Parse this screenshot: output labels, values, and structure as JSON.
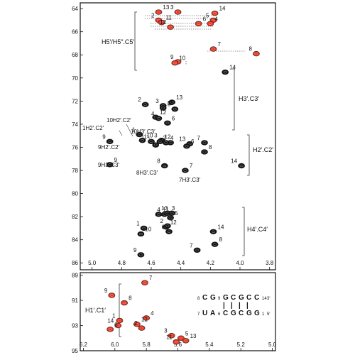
{
  "chart_data": [
    {
      "type": "scatter",
      "x_ticks": [
        "5.0",
        "4.8",
        "4.6",
        "4.4",
        "4.2",
        "4.0",
        "3.8"
      ],
      "y_ticks": [
        "64",
        "66",
        "68",
        "70",
        "72",
        "74",
        "76",
        "78",
        "80",
        "82",
        "84",
        "86"
      ],
      "xlim": [
        5.08,
        3.76
      ],
      "ylim": [
        63.5,
        86.6
      ],
      "group_labels": [
        {
          "text": "H5′/H5″.C5′"
        },
        {
          "text": "H3′.C3′"
        },
        {
          "text": "H2′.C2′"
        },
        {
          "text": "H4′.C4′"
        }
      ],
      "annotations": [
        {
          "text": "1H2′.C2′"
        },
        {
          "text": "10H2′.C2′"
        },
        {
          "text": "10H3′.C3′"
        },
        {
          "text": "9H2′.C2′"
        },
        {
          "text": "9H3′.C3′"
        },
        {
          "text": "8H3′.C3′"
        },
        {
          "text": "7H3′.C3′"
        }
      ],
      "series": [
        {
          "color": "#e8321e",
          "points": [
            {
              "label": "13",
              "x": 4.55,
              "y": 64.3
            },
            {
              "label": "3",
              "x": 4.42,
              "y": 64.3
            },
            {
              "label": "14",
              "x": 4.17,
              "y": 64.4
            },
            {
              "label": "2",
              "x": 4.55,
              "y": 65.0
            },
            {
              "label": "11",
              "x": 4.53,
              "y": 65.2
            },
            {
              "label": "5",
              "x": 4.18,
              "y": 65.0
            },
            {
              "label": "4",
              "x": 4.2,
              "y": 65.3
            },
            {
              "label": "12",
              "x": 4.47,
              "y": 65.6
            },
            {
              "label": "6",
              "x": 4.28,
              "y": 65.3
            },
            {
              "label": "9",
              "x": 4.42,
              "y": 68.6
            },
            {
              "label": "7",
              "x": 4.18,
              "y": 67.5
            },
            {
              "label": "8",
              "x": 3.89,
              "y": 67.9
            },
            {
              "label": "10",
              "x": 4.44,
              "y": 68.7
            }
          ]
        },
        {
          "color": "#111111",
          "points": [
            {
              "label": "14",
              "x": 4.1,
              "y": 69.5
            },
            {
              "label": "3",
              "x": 4.52,
              "y": 72.4
            },
            {
              "label": "13",
              "x": 4.46,
              "y": 72.1
            },
            {
              "label": "2",
              "x": 4.64,
              "y": 72.3
            },
            {
              "label": "11",
              "x": 4.52,
              "y": 72.6
            },
            {
              "label": "5",
              "x": 4.44,
              "y": 72.7
            },
            {
              "label": "12",
              "x": 4.57,
              "y": 73.4
            },
            {
              "label": "4",
              "x": 4.55,
              "y": 73.5
            },
            {
              "label": "6",
              "x": 4.49,
              "y": 73.9
            },
            {
              "label": "1",
              "x": 4.68,
              "y": 74.9
            },
            {
              "label": "10",
              "x": 4.66,
              "y": 75.4
            },
            {
              "label": "3",
              "x": 4.53,
              "y": 75.4
            },
            {
              "label": "12",
              "x": 4.54,
              "y": 75.5
            },
            {
              "label": "11",
              "x": 4.6,
              "y": 75.5
            },
            {
              "label": "5",
              "x": 4.57,
              "y": 75.8
            },
            {
              "label": "2",
              "x": 4.47,
              "y": 75.6
            },
            {
              "label": "4",
              "x": 4.5,
              "y": 75.6
            },
            {
              "label": "13",
              "x": 4.34,
              "y": 75.7
            },
            {
              "label": "6",
              "x": 4.36,
              "y": 75.9
            },
            {
              "label": "7",
              "x": 4.24,
              "y": 75.6
            },
            {
              "label": "8",
              "x": 4.24,
              "y": 76.4
            },
            {
              "label": "9",
              "x": 4.88,
              "y": 75.5
            },
            {
              "label": "9",
              "x": 4.88,
              "y": 77.5
            },
            {
              "label": "8",
              "x": 4.51,
              "y": 77.6
            },
            {
              "label": "7",
              "x": 4.37,
              "y": 78.0
            },
            {
              "label": "14",
              "x": 3.99,
              "y": 77.6
            },
            {
              "label": "11",
              "x": 4.55,
              "y": 81.8
            },
            {
              "label": "4",
              "x": 4.51,
              "y": 81.8
            },
            {
              "label": "3",
              "x": 4.49,
              "y": 81.7
            },
            {
              "label": "13",
              "x": 4.46,
              "y": 81.7
            },
            {
              "label": "5",
              "x": 4.47,
              "y": 82.1
            },
            {
              "label": "1",
              "x": 4.65,
              "y": 83.0
            },
            {
              "label": "12",
              "x": 4.5,
              "y": 82.9
            },
            {
              "label": "2",
              "x": 4.49,
              "y": 82.8
            },
            {
              "label": "10",
              "x": 4.67,
              "y": 83.5
            },
            {
              "label": "6",
              "x": 4.48,
              "y": 83.3
            },
            {
              "label": "14",
              "x": 4.18,
              "y": 83.3
            },
            {
              "label": "7",
              "x": 4.29,
              "y": 84.9
            },
            {
              "label": "8",
              "x": 4.17,
              "y": 84.4
            },
            {
              "label": "9",
              "x": 4.67,
              "y": 85.3
            }
          ]
        }
      ]
    },
    {
      "type": "scatter",
      "x_ticks": [
        "6.2",
        "6.0",
        "5.8",
        "5.6",
        "5.4",
        "5.2",
        "5.0"
      ],
      "y_ticks": [
        "89",
        "91",
        "93",
        "95"
      ],
      "xlim": [
        6.22,
        4.98
      ],
      "ylim": [
        88.8,
        95.0
      ],
      "group_labels": [
        {
          "text": "H1′.C1′"
        }
      ],
      "series": [
        {
          "color": "#e8321e",
          "points": [
            {
              "label": "7",
              "x": 5.81,
              "y": 89.6
            },
            {
              "label": "9",
              "x": 6.02,
              "y": 90.6
            },
            {
              "label": "8",
              "x": 5.94,
              "y": 91.2
            },
            {
              "label": "1",
              "x": 5.97,
              "y": 92.6
            },
            {
              "label": "4",
              "x": 5.8,
              "y": 92.4
            },
            {
              "label": "14",
              "x": 5.98,
              "y": 93.0
            },
            {
              "label": "12",
              "x": 5.86,
              "y": 92.9
            },
            {
              "label": "2",
              "x": 5.83,
              "y": 93.2
            },
            {
              "label": "6",
              "x": 6.03,
              "y": 93.3
            },
            {
              "label": "3",
              "x": 5.64,
              "y": 93.8
            },
            {
              "label": "5",
              "x": 5.58,
              "y": 94.0
            },
            {
              "label": "11",
              "x": 5.61,
              "y": 94.3
            },
            {
              "label": "13",
              "x": 5.55,
              "y": 94.2
            }
          ]
        }
      ],
      "structure": {
        "top_strand": [
          "8",
          "C",
          "G",
          "9",
          "G",
          "C",
          "G",
          "C",
          "C",
          "14",
          "3′"
        ],
        "bottom_strand": [
          "7",
          "U",
          "A",
          "6",
          "C",
          "G",
          "C",
          "G",
          "G",
          "1",
          "5′"
        ],
        "pairs": [
          "|",
          "|",
          "|",
          "|"
        ]
      }
    }
  ]
}
